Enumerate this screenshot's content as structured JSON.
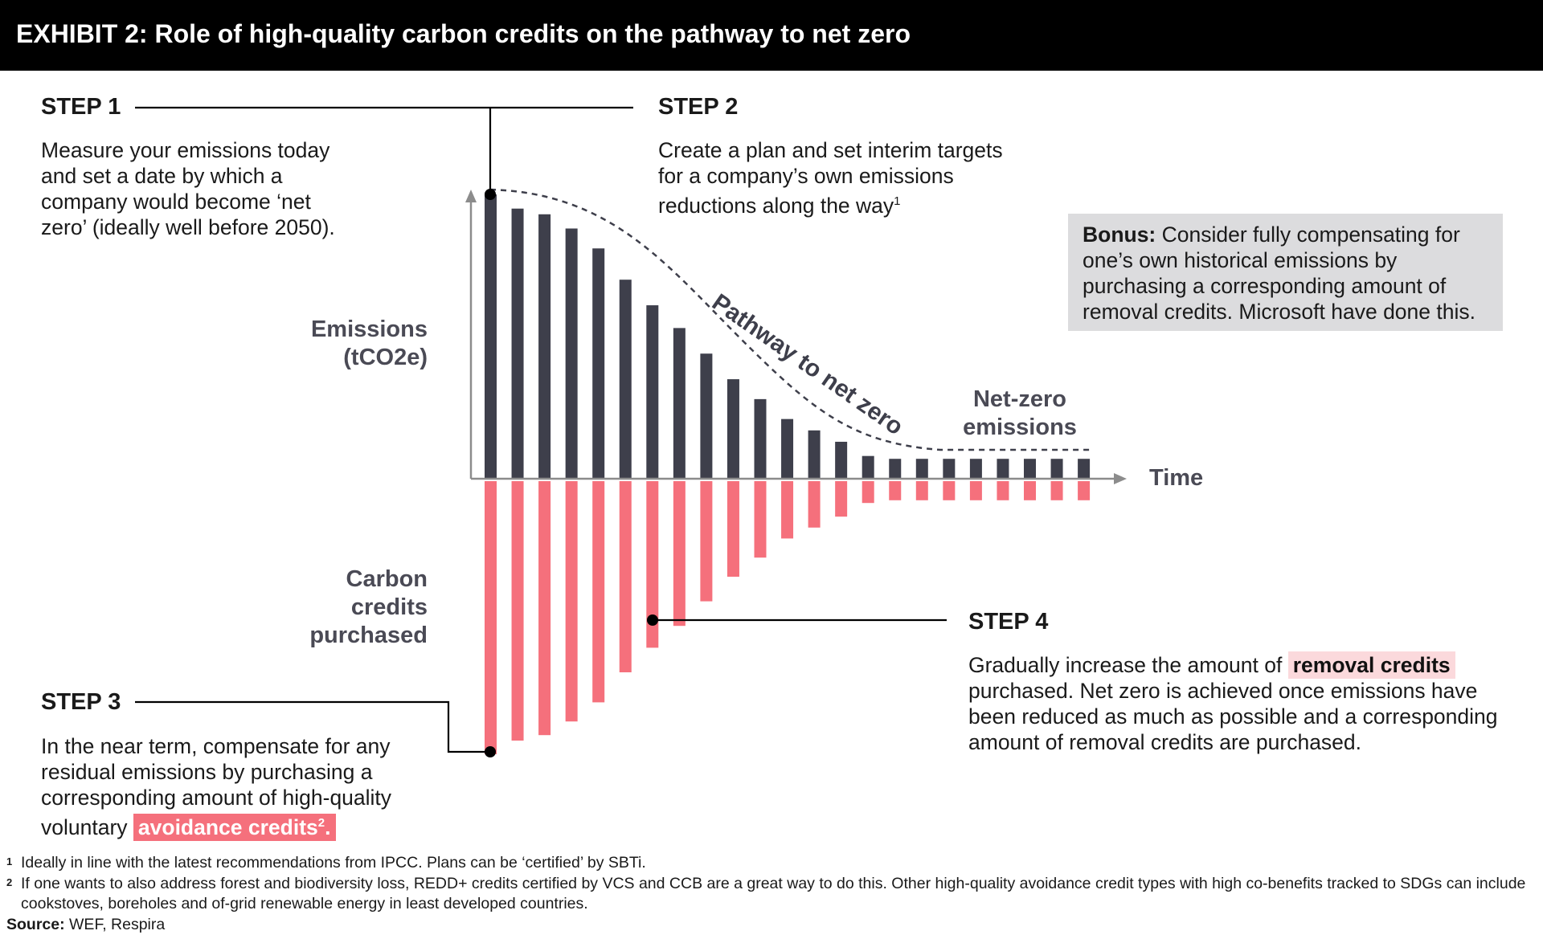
{
  "title": "EXHIBIT 2: Role of high-quality carbon credits on the pathway to net zero",
  "steps": {
    "step1": {
      "heading": "STEP 1",
      "text": "Measure your emissions today and set a date by which a company would become ‘net zero’ (ideally well before 2050)."
    },
    "step2": {
      "heading": "STEP 2",
      "text": "Create a plan and set interim targets for a company’s own emissions reductions along the way",
      "sup": "1"
    },
    "step3": {
      "heading": "STEP 3",
      "text_before": "In the near term, compensate for any residual emissions by purchasing a corresponding amount of high-quality voluntary",
      "highlight": "avoidance credits",
      "sup": "2",
      "suffix": "."
    },
    "step4": {
      "heading": "STEP 4",
      "text_before": "Gradually increase the amount of",
      "highlight": "removal credits",
      "text_after": "purchased. Net zero is achieved once emissions have been reduced as much as possible and a corresponding amount of removal credits are purchased."
    }
  },
  "bonus": {
    "bold": "Bonus:",
    "text": "Consider fully compensating for one’s own historical emissions by purchasing a corresponding amount of removal credits. Microsoft have done this."
  },
  "labels": {
    "emissions_line1": "Emissions",
    "emissions_line2": "(tCO2e)",
    "credits_line1": "Carbon",
    "credits_line2": "credits",
    "credits_line3": "purchased",
    "time": "Time",
    "netzero_line1": "Net-zero",
    "netzero_line2": "emissions",
    "pathway": "Pathway to net zero"
  },
  "footnotes": [
    {
      "num": "1",
      "text": "Ideally in line with the latest recommendations from IPCC. Plans can be ‘certified’ by SBTi."
    },
    {
      "num": "2",
      "text": "If one wants to also address forest and biodiversity loss, REDD+ credits certified by VCS and CCB are a great way to do this. Other high-quality avoidance credit types with high co-benefits tracked to SDGs can include cookstoves, boreholes and of-grid renewable energy in least developed countries."
    }
  ],
  "source": {
    "label": "Source:",
    "text": "WEF, Respira"
  },
  "colors": {
    "emissions_bar": "#3e3f4b",
    "avoidance_credit": "#f5707c",
    "removal_credit": "#fbb6bc",
    "axis": "#8c8c8c"
  },
  "chart_data": {
    "type": "bar",
    "note": "relative units; emissions above axis, credits below",
    "emissions": [
      100,
      95,
      93,
      88,
      81,
      70,
      61,
      53,
      44,
      35,
      28,
      21,
      17,
      13,
      8,
      7,
      7,
      7,
      7,
      7,
      7,
      7,
      7
    ],
    "avoidance_credits": [
      100,
      95,
      93,
      88,
      81,
      70,
      61,
      53,
      44,
      35,
      28,
      21,
      17,
      13,
      8,
      7,
      7,
      7,
      7,
      7,
      7,
      7,
      7
    ],
    "removal_credits": [
      0,
      0,
      0,
      0,
      0,
      0,
      0,
      0,
      0,
      0,
      0,
      0,
      0,
      0,
      0,
      0,
      0,
      0,
      0,
      0,
      0,
      0,
      0
    ]
  }
}
